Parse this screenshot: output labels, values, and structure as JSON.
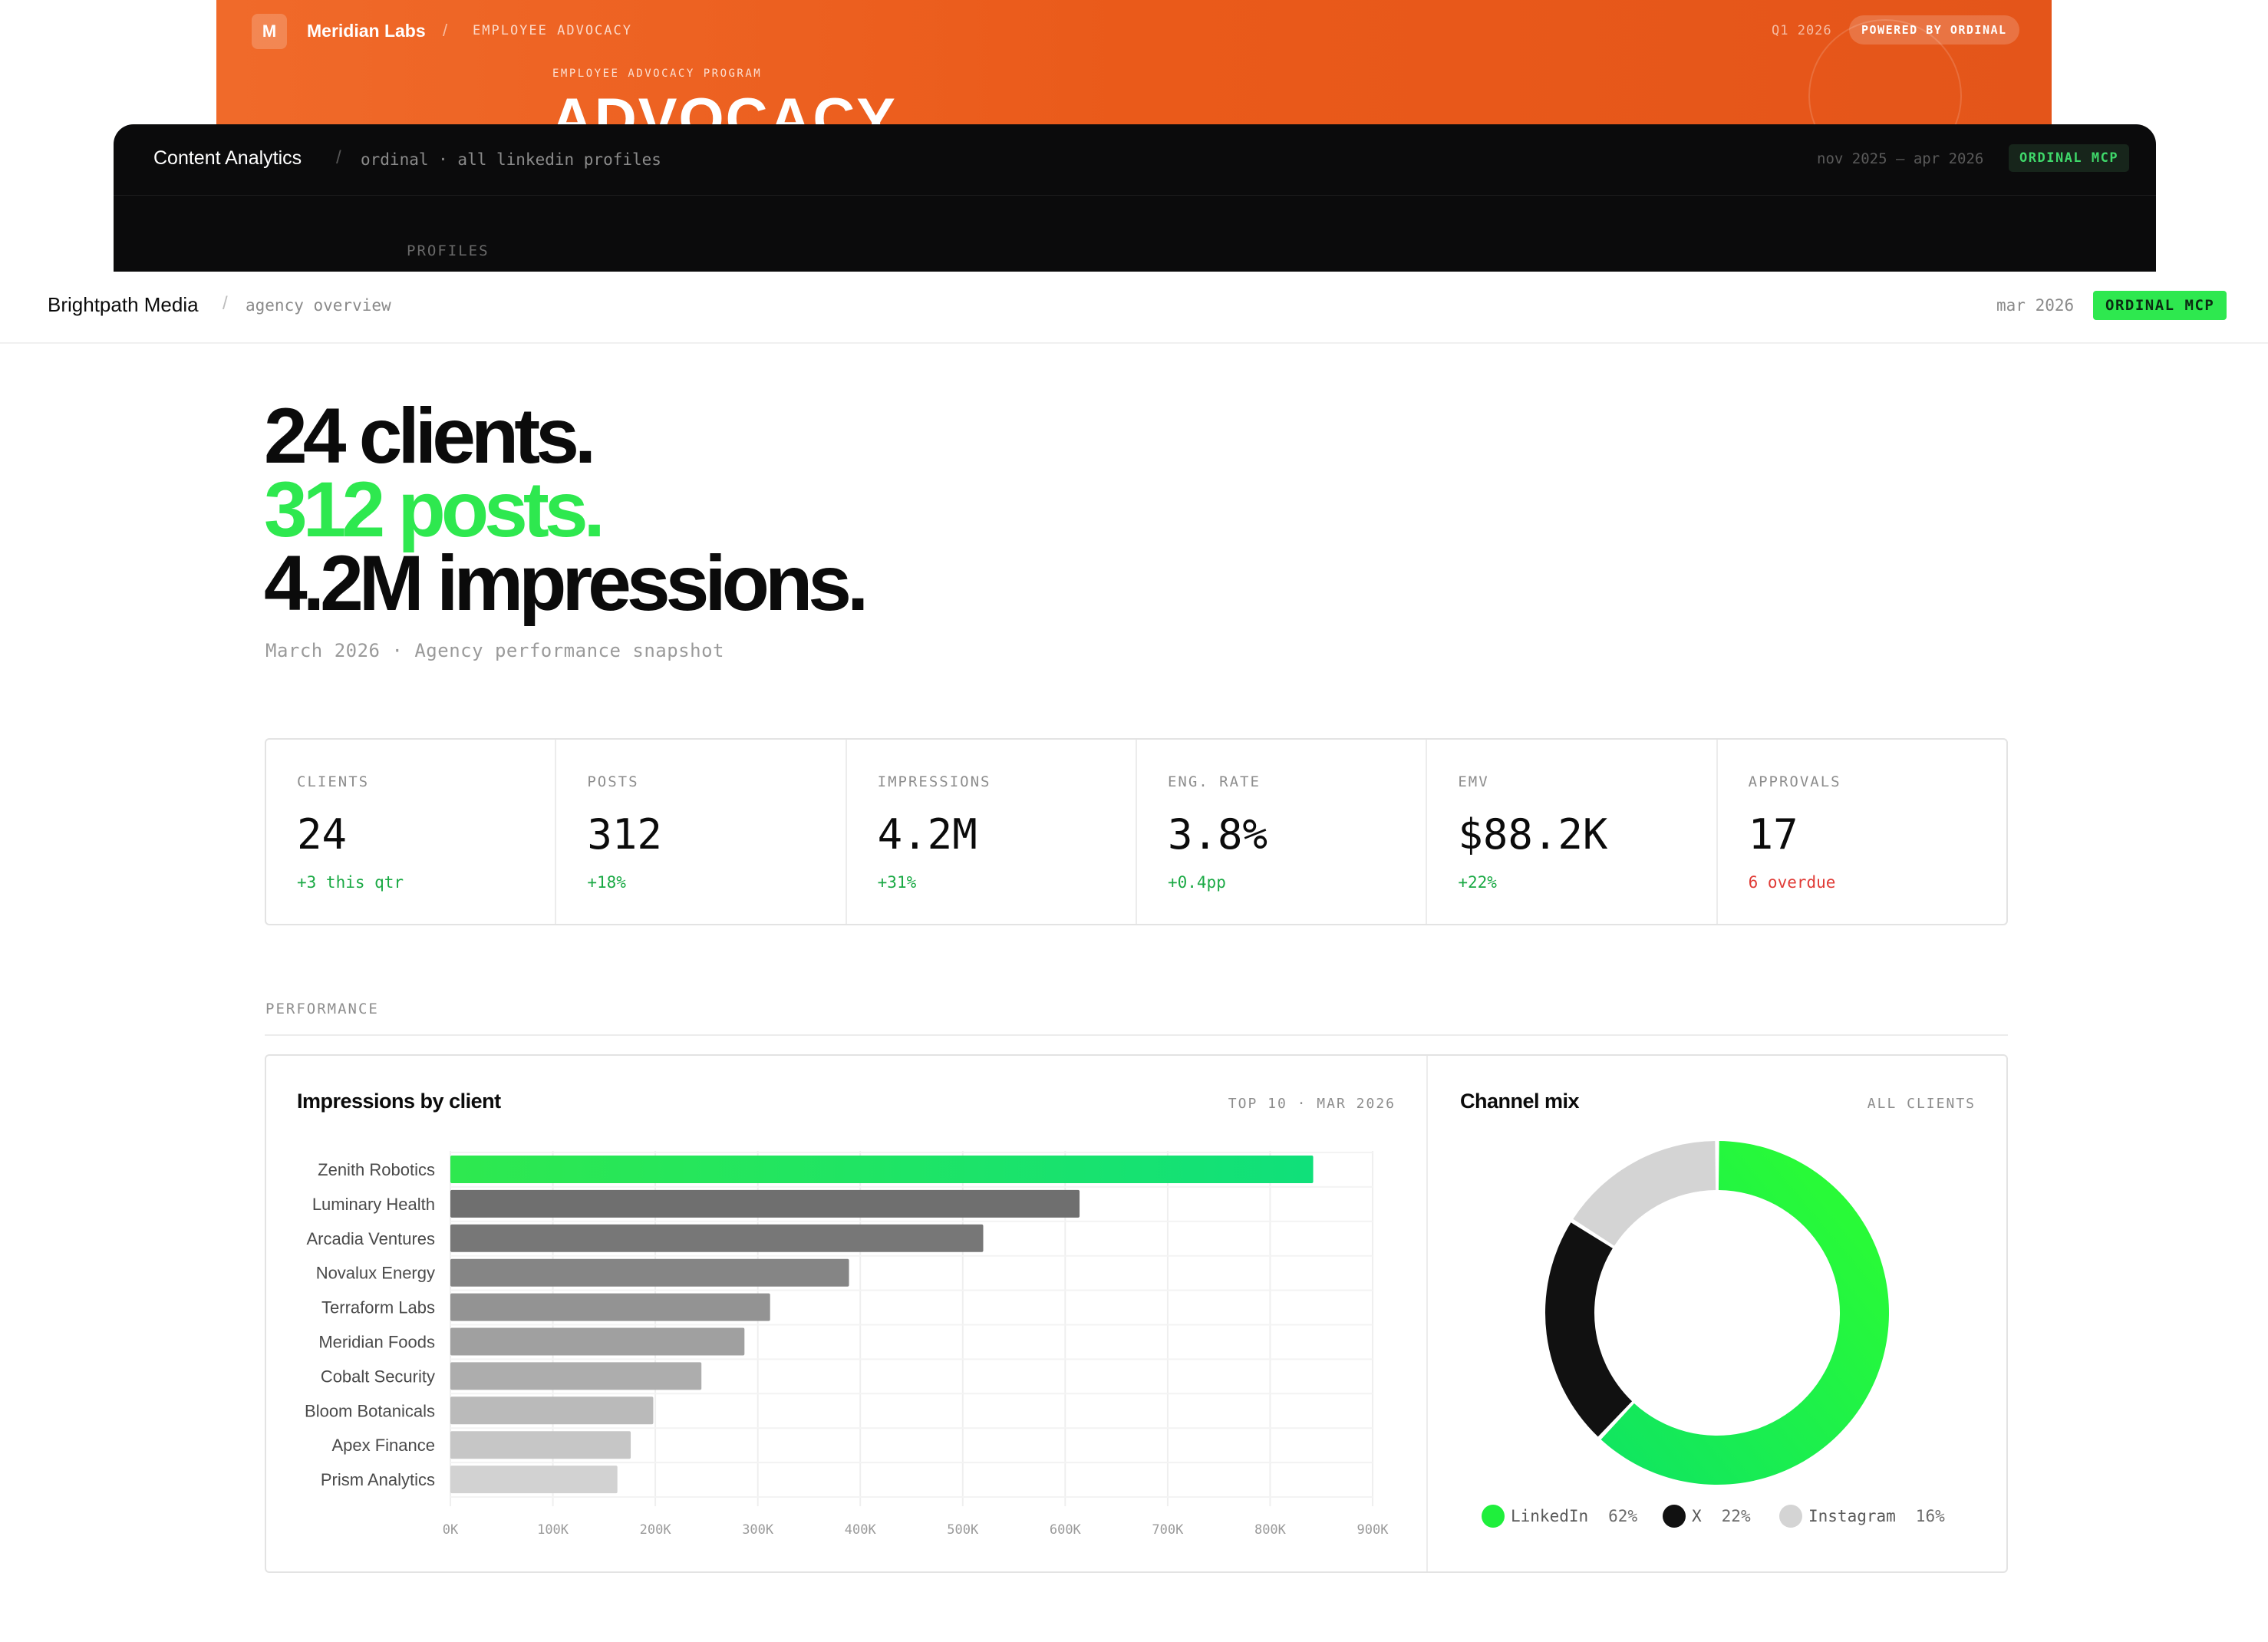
{
  "orange_card": {
    "logo_letter": "M",
    "brand": "Meridian Labs",
    "separator": "/",
    "section": "EMPLOYEE ADVOCACY",
    "quarter": "Q1 2026",
    "badge": "POWERED BY ORDINAL",
    "eyebrow": "EMPLOYEE ADVOCACY PROGRAM",
    "headline": "ADVOCACY",
    "accent": "#ea5a1a"
  },
  "dark_card": {
    "title": "Content Analytics",
    "separator": "/",
    "subtitle": "ordinal · all linkedin profiles",
    "range": "nov 2025 – apr 2026",
    "badge": "ORDINAL MCP",
    "label": "PROFILES"
  },
  "header": {
    "brand": "Brightpath Media",
    "separator": "/",
    "subtitle": "agency overview",
    "date": "mar 2026",
    "badge": "ORDINAL MCP",
    "badge_color": "#2ee84f"
  },
  "hero": {
    "line1": "24 clients.",
    "line2": "312 posts.",
    "line3": "4.2M impressions.",
    "caption": "March 2026 · Agency performance snapshot",
    "accent": "#2ee84f"
  },
  "kpis": [
    {
      "label": "CLIENTS",
      "value": "24",
      "delta": "+3 this qtr",
      "tone": "up"
    },
    {
      "label": "POSTS",
      "value": "312",
      "delta": "+18%",
      "tone": "up"
    },
    {
      "label": "IMPRESSIONS",
      "value": "4.2M",
      "delta": "+31%",
      "tone": "up"
    },
    {
      "label": "ENG. RATE",
      "value": "3.8%",
      "delta": "+0.4pp",
      "tone": "up"
    },
    {
      "label": "EMV",
      "value": "$88.2K",
      "delta": "+22%",
      "tone": "up"
    },
    {
      "label": "APPROVALS",
      "value": "17",
      "delta": "6 overdue",
      "tone": "warn"
    }
  ],
  "section": {
    "label": "PERFORMANCE"
  },
  "impressions_panel": {
    "title": "Impressions by client",
    "meta": "TOP 10 · MAR 2026"
  },
  "channel_panel": {
    "title": "Channel mix",
    "meta": "ALL CLIENTS"
  },
  "chart_data": [
    {
      "type": "bar",
      "orientation": "horizontal",
      "title": "Impressions by client",
      "categories": [
        "Zenith Robotics",
        "Luminary Health",
        "Arcadia Ventures",
        "Novalux Energy",
        "Terraform Labs",
        "Meridian Foods",
        "Cobalt Security",
        "Bloom Botanicals",
        "Apex Finance",
        "Prism Analytics"
      ],
      "values": [
        842000,
        614000,
        520000,
        389000,
        312000,
        287000,
        245000,
        198000,
        176000,
        163000
      ],
      "xlim": [
        0,
        900000
      ],
      "xticks": [
        "0K",
        "100K",
        "200K",
        "300K",
        "400K",
        "500K",
        "600K",
        "700K",
        "800K",
        "900K"
      ],
      "grid": true,
      "highlight_color": "#2ee84f"
    },
    {
      "type": "pie",
      "style": "donut",
      "title": "Channel mix",
      "series": [
        {
          "name": "LinkedIn",
          "value": 62,
          "label": "62%",
          "color": "#1fef3c"
        },
        {
          "name": "X",
          "value": 22,
          "label": "22%",
          "color": "#111111"
        },
        {
          "name": "Instagram",
          "value": 16,
          "label": "16%",
          "color": "#d4d4d4"
        }
      ],
      "legend": "bottom"
    }
  ]
}
